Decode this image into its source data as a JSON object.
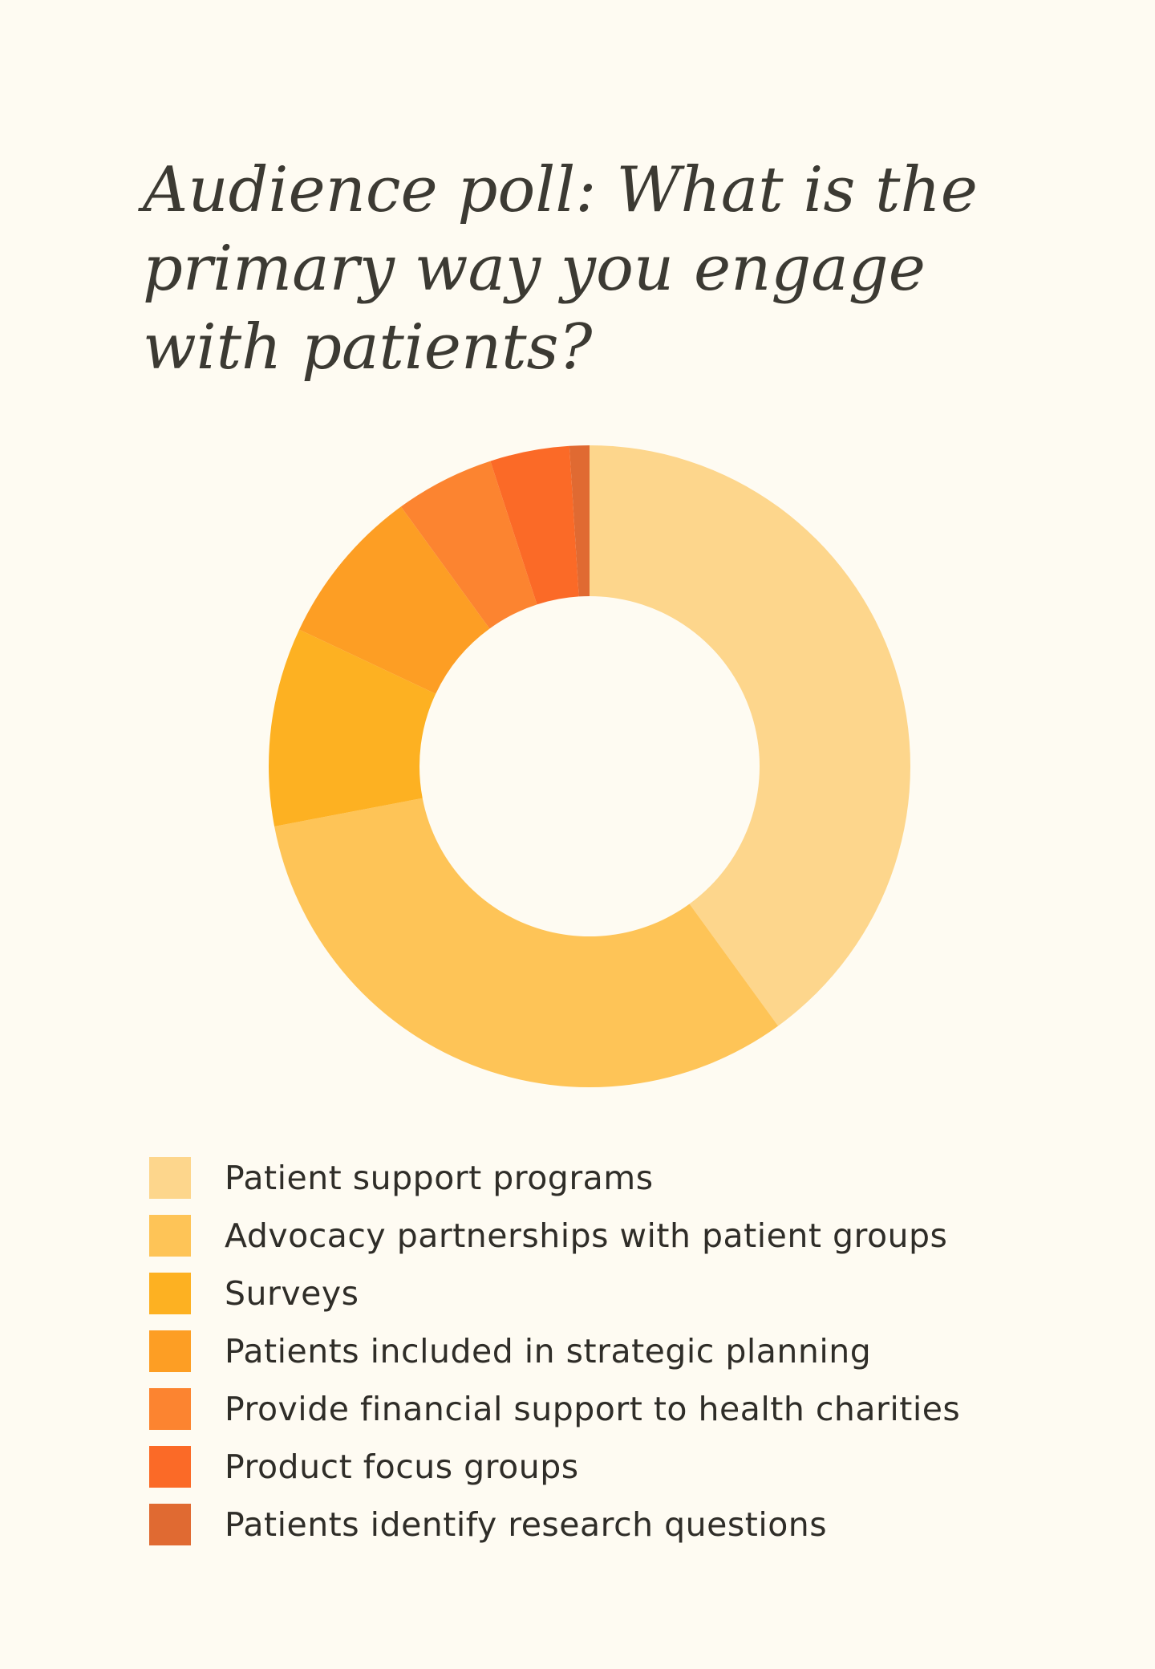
{
  "chart_data": {
    "type": "pie",
    "variant": "donut",
    "title": "Audience poll: What is the primary way you engage with patients?",
    "legend_position": "bottom",
    "slices": [
      {
        "label": "Patient support programs",
        "value": 40,
        "color": "#fdd68c"
      },
      {
        "label": "Advocacy partnerships with patient groups",
        "value": 32,
        "color": "#fec457"
      },
      {
        "label": "Surveys",
        "value": 10,
        "color": "#fdb122"
      },
      {
        "label": "Patients included in strategic planning",
        "value": 8,
        "color": "#fd9e24"
      },
      {
        "label": "Provide financial support to health charities",
        "value": 5,
        "color": "#fc8430"
      },
      {
        "label": "Product focus groups",
        "value": 4,
        "color": "#fb6a27"
      },
      {
        "label": "Patients identify research questions",
        "value": 1,
        "color": "#e06a32"
      }
    ]
  }
}
